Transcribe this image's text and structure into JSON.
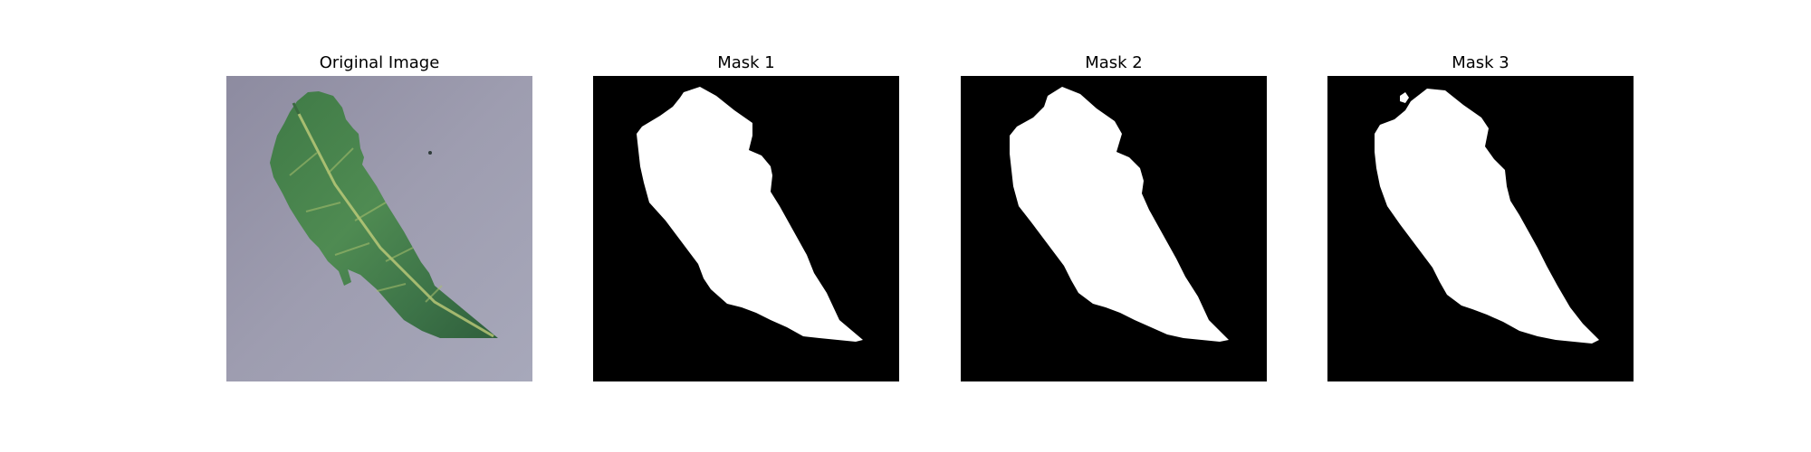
{
  "figure": {
    "panels": [
      {
        "title": "Original Image",
        "kind": "photo",
        "subject": "green tomato leaf on grey surface"
      },
      {
        "title": "Mask 1",
        "kind": "mask",
        "mask_color": "#ffffff",
        "background_color": "#000000"
      },
      {
        "title": "Mask 2",
        "kind": "mask",
        "mask_color": "#ffffff",
        "background_color": "#000000"
      },
      {
        "title": "Mask 3",
        "kind": "mask",
        "mask_color": "#ffffff",
        "background_color": "#000000"
      }
    ]
  }
}
